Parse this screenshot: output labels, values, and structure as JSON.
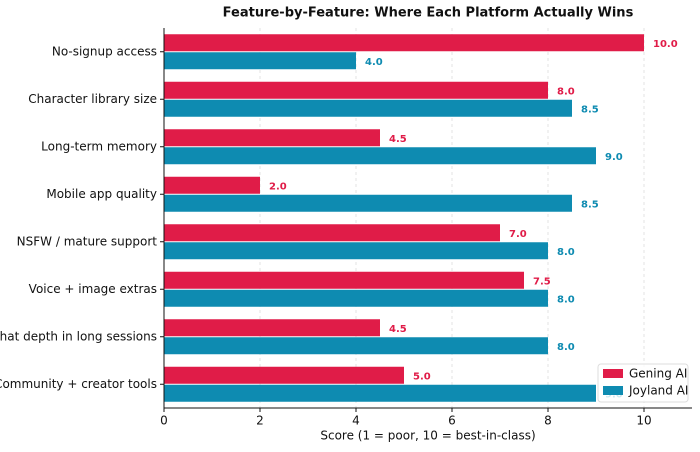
{
  "chart_data": {
    "type": "barh",
    "title": "Feature-by-Feature: Where Each Platform Actually Wins",
    "x_label": "Score (1 = poor, 10 = best-in-class)",
    "categories": [
      "No-signup access",
      "Character library size",
      "Long-term memory",
      "Mobile app quality",
      "NSFW / mature support",
      "Voice + image extras",
      "Chat depth in long sessions",
      "Community + creator tools"
    ],
    "series": [
      {
        "name": "Gening AI",
        "color": "#e01c48",
        "values": [
          10,
          8,
          4.5,
          2,
          7,
          7.5,
          4.5,
          5
        ],
        "value_labels": [
          "10.0",
          "8.0",
          "4.5",
          "2.0",
          "7.0",
          "7.5",
          "4.5",
          "5.0"
        ]
      },
      {
        "name": "Joyland AI",
        "color": "#0e8bb1",
        "values": [
          4,
          8.5,
          9,
          8.5,
          8,
          8,
          8,
          9
        ],
        "value_labels": [
          "4.0",
          "8.5",
          "9.0",
          "8.5",
          "8.0",
          "8.0",
          "8.0",
          "9.0"
        ]
      }
    ],
    "xlim": [
      0,
      11
    ],
    "xticks": [
      0,
      2,
      4,
      6,
      8,
      10
    ],
    "grid": true,
    "legend": "lower right"
  }
}
